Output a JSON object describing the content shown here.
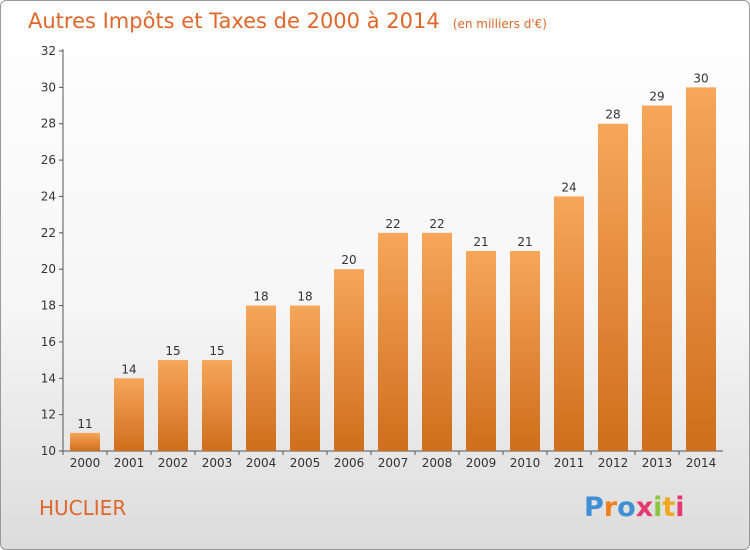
{
  "chart_data": {
    "type": "bar",
    "title": "Autres Impôts et Taxes de 2000 à 2014",
    "subtitle": "(en milliers d'€)",
    "categories": [
      "2000",
      "2001",
      "2002",
      "2003",
      "2004",
      "2005",
      "2006",
      "2007",
      "2008",
      "2009",
      "2010",
      "2011",
      "2012",
      "2013",
      "2014"
    ],
    "values": [
      11,
      14,
      15,
      15,
      18,
      18,
      20,
      22,
      22,
      21,
      21,
      24,
      28,
      29,
      30
    ],
    "ylim": [
      10,
      32
    ],
    "yticks": [
      10,
      12,
      14,
      16,
      18,
      20,
      22,
      24,
      26,
      28,
      30,
      32
    ],
    "xlabel": "",
    "ylabel": "",
    "grid": false,
    "bar_color_top": "#f7a65a",
    "bar_color_bottom": "#cf6e1c"
  },
  "commune": "HUCLIER",
  "logo": {
    "text": "Proxiti",
    "letter_colors": [
      "#3f8fd4",
      "#f07f1f",
      "#3f8fd4",
      "#e63a6e",
      "#8dc63f",
      "#f2a81d",
      "#e63a6e"
    ]
  }
}
